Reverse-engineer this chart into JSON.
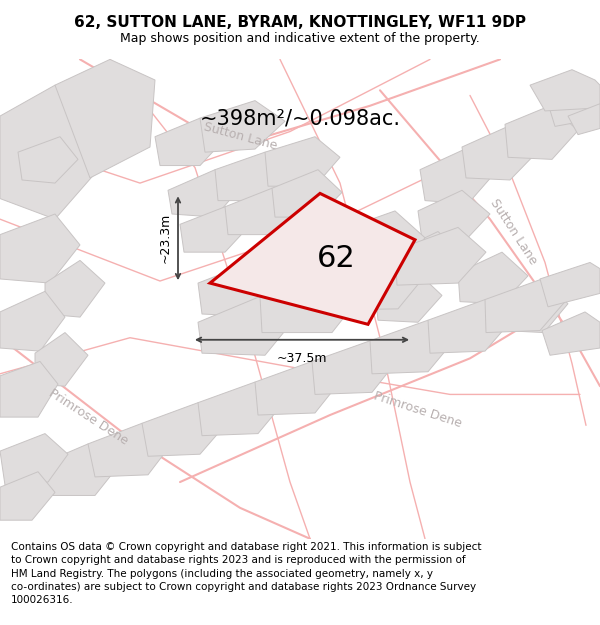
{
  "title": "62, SUTTON LANE, BYRAM, KNOTTINGLEY, WF11 9DP",
  "subtitle": "Map shows position and indicative extent of the property.",
  "footer": "Contains OS data © Crown copyright and database right 2021. This information is subject\nto Crown copyright and database rights 2023 and is reproduced with the permission of\nHM Land Registry. The polygons (including the associated geometry, namely x, y\nco-ordinates) are subject to Crown copyright and database rights 2023 Ordnance Survey\n100026316.",
  "area_text": "~398m²/~0.098ac.",
  "label_62": "62",
  "dim_width": "~37.5m",
  "dim_height": "~23.3m",
  "street_sutton_top": "Sutton Lane",
  "street_sutton_right": "Sutton Lane",
  "street_primrose_left": "Primrose Dene",
  "street_primrose_right": "Primrose Dene",
  "bg_color": "#eeecec",
  "block_color": "#e0dddd",
  "block_outline": "#c8c4c4",
  "red_outline": "#cc0000",
  "red_fill": "#f5e8e8",
  "dim_color": "#444444",
  "street_color": "#b8b0b0",
  "road_color": "#f5b0b0",
  "title_fontsize": 11,
  "subtitle_fontsize": 9,
  "footer_fontsize": 7.5,
  "area_fontsize": 15,
  "label_fontsize": 22,
  "street_fontsize": 9
}
